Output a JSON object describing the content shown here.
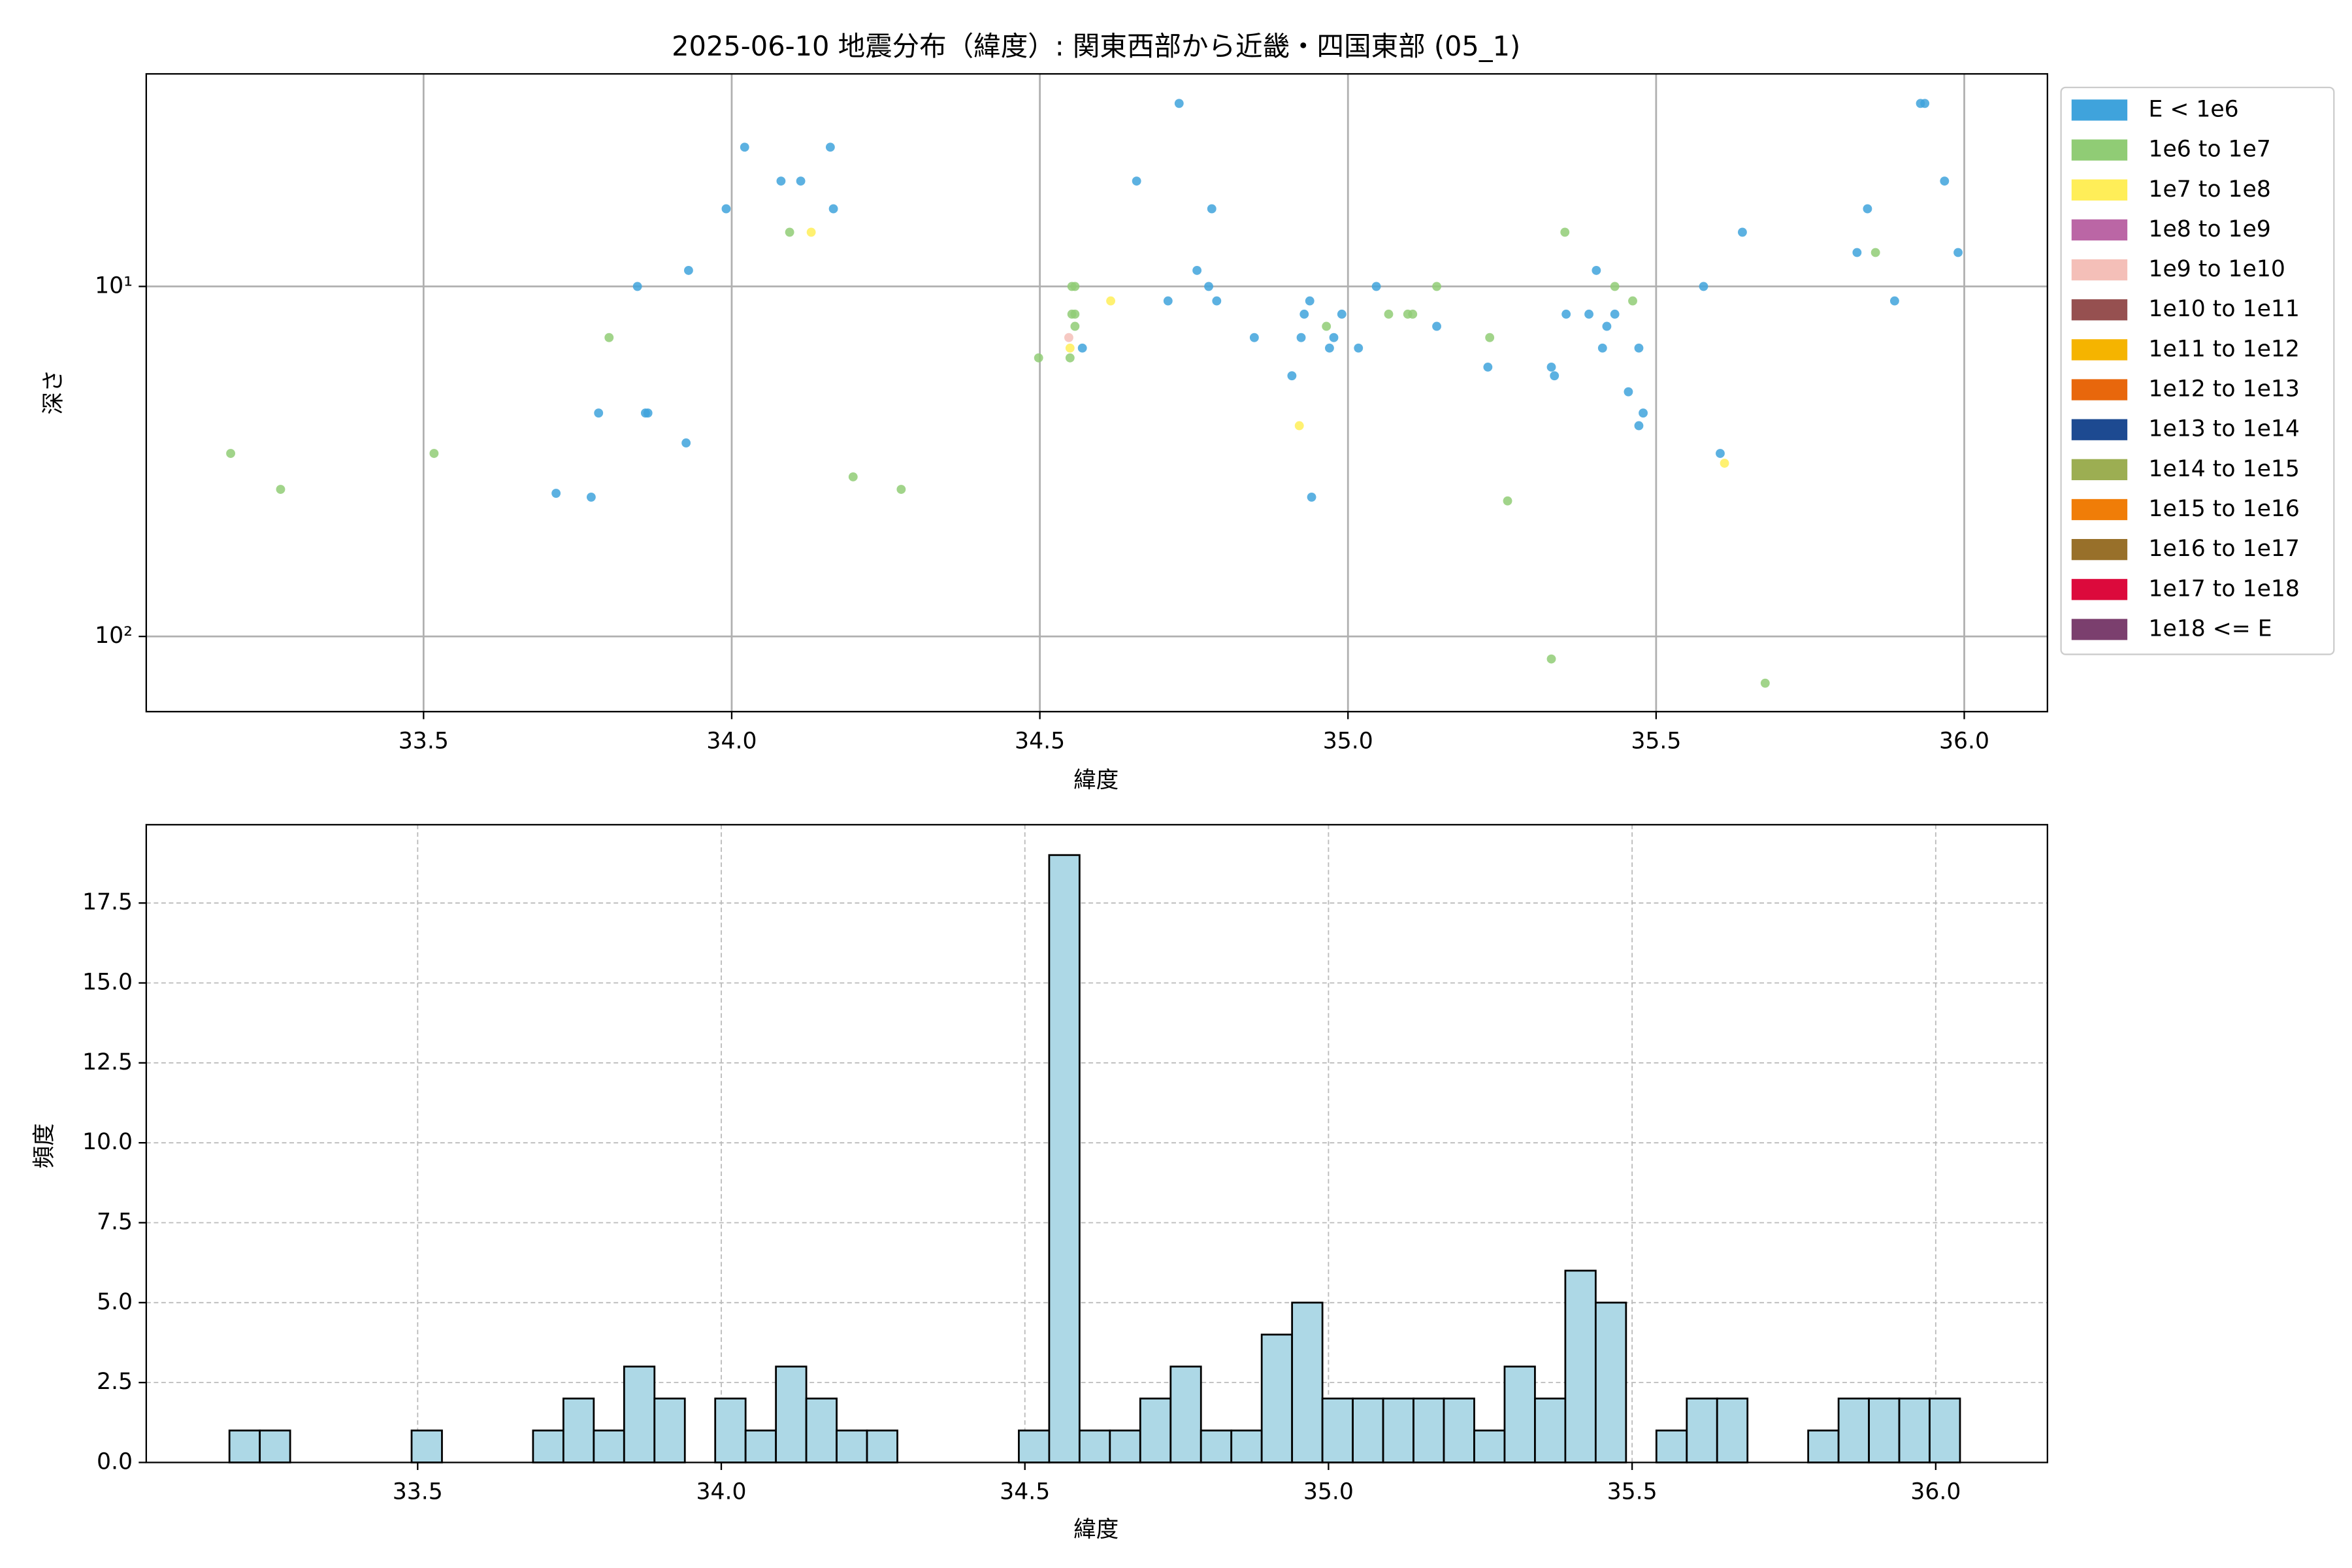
{
  "chart_data": [
    {
      "type": "scatter",
      "title": "2025-06-10 地震分布（緯度）: 関東西部から近畿・四国東部 (05_1)",
      "xlabel": "緯度",
      "ylabel": "深さ",
      "xlim": [
        33.05,
        36.135
      ],
      "ylim": [
        164,
        2.47
      ],
      "y_scale": "log",
      "grid": true,
      "legend": "outside-right",
      "xticks": [
        33.5,
        {
          "value": 34.0,
          "label": "34.0"
        },
        34.5,
        {
          "value": 35.0,
          "label": "35.0"
        },
        35.5,
        {
          "value": 36.0,
          "label": "36.0"
        }
      ],
      "yticks": [
        {
          "value": 10,
          "label": "10¹"
        },
        {
          "value": 100,
          "label": "10²"
        }
      ],
      "series": [
        {
          "name": "E < 1e6",
          "color": "#3fa3dc",
          "x": [
            33.715,
            33.772,
            33.784,
            33.847,
            33.86,
            33.864,
            33.926,
            33.93,
            33.991,
            34.021,
            34.08,
            34.112,
            34.16,
            34.165,
            34.569,
            34.657,
            34.708,
            34.726,
            34.755,
            34.774,
            34.779,
            34.787,
            34.848,
            34.909,
            34.924,
            34.929,
            34.938,
            34.941,
            34.97,
            34.977,
            34.99,
            35.017,
            35.046,
            35.144,
            35.227,
            35.33,
            35.335,
            35.354,
            35.391,
            35.403,
            35.42,
            35.413,
            35.433,
            35.455,
            35.472,
            35.472,
            35.479,
            35.577,
            35.604,
            35.64,
            35.826,
            35.843,
            35.887,
            35.929,
            35.936,
            35.968,
            35.99
          ],
          "values": [
            39,
            40,
            23,
            10,
            23,
            23,
            28,
            9,
            6,
            4,
            5,
            5,
            4,
            6,
            15,
            5,
            11,
            3,
            9,
            10,
            6,
            11,
            14,
            18,
            14,
            12,
            11,
            40,
            15,
            14,
            12,
            15,
            10,
            13,
            17,
            17,
            18,
            12,
            12,
            9,
            13,
            15,
            12,
            20,
            15,
            25,
            23,
            10,
            30,
            7,
            8,
            6,
            11,
            3,
            3,
            5,
            8
          ]
        },
        {
          "name": "1e6 to 1e7",
          "color": "#90cc75",
          "x": [
            33.187,
            33.268,
            33.517,
            33.801,
            34.094,
            34.197,
            34.275,
            34.498,
            34.549,
            34.552,
            34.557,
            34.552,
            34.557,
            34.557,
            34.965,
            35.066,
            35.097,
            35.105,
            35.144,
            35.23,
            35.259,
            35.33,
            35.352,
            35.433,
            35.462,
            35.677,
            35.856
          ],
          "values": [
            30,
            38,
            30,
            14,
            7,
            35,
            38,
            16,
            16,
            10,
            10,
            12,
            12,
            13,
            13,
            12,
            12,
            12,
            10,
            14,
            41,
            116,
            7,
            10,
            11,
            136,
            8
          ]
        },
        {
          "name": "1e7 to 1e8",
          "color": "#ffee58",
          "x": [
            34.129,
            34.549,
            34.615,
            34.921,
            35.611
          ],
          "values": [
            7,
            15,
            11,
            25,
            32
          ]
        },
        {
          "name": "1e8 to 1e9",
          "color": "#bb66a5",
          "x": [],
          "values": []
        },
        {
          "name": "1e9 to 1e10",
          "color": "#f4bfb8",
          "x": [
            34.547
          ],
          "values": [
            14
          ]
        },
        {
          "name": "1e10 to 1e11",
          "color": "#965050",
          "x": [],
          "values": []
        },
        {
          "name": "1e11 to 1e12",
          "color": "#f5b400",
          "x": [],
          "values": []
        },
        {
          "name": "1e12 to 1e13",
          "color": "#e8670c",
          "x": [],
          "values": []
        },
        {
          "name": "1e13 to 1e14",
          "color": "#1d4a91",
          "x": [],
          "values": []
        },
        {
          "name": "1e14 to 1e15",
          "color": "#9cae52",
          "x": [],
          "values": []
        },
        {
          "name": "1e15 to 1e16",
          "color": "#f07d08",
          "x": [],
          "values": []
        },
        {
          "name": "1e16 to 1e17",
          "color": "#98702a",
          "x": [],
          "values": []
        },
        {
          "name": "1e17 to 1e18",
          "color": "#dc0a3c",
          "x": [],
          "values": []
        },
        {
          "name": "1e18 <= E",
          "color": "#7b3f6e",
          "x": [],
          "values": []
        }
      ]
    },
    {
      "type": "histogram",
      "xlabel": "緯度",
      "ylabel": "頻度",
      "color": "#add8e6",
      "grid": true,
      "xlim": [
        33.053,
        36.184
      ],
      "ylim": [
        0,
        19.95
      ],
      "xticks": [
        33.5,
        {
          "value": 34.0,
          "label": "34.0"
        },
        34.5,
        {
          "value": 35.0,
          "label": "35.0"
        },
        35.5,
        {
          "value": 36.0,
          "label": "36.0"
        }
      ],
      "yticks": [
        {
          "value": 0,
          "label": "0.0"
        },
        2.5,
        {
          "value": 5,
          "label": "5.0"
        },
        7.5,
        {
          "value": 10,
          "label": "10.0"
        },
        12.5,
        {
          "value": 15,
          "label": "15.0"
        },
        17.5
      ],
      "bins": [
        33.19,
        33.24,
        33.29,
        33.34,
        33.39,
        33.44,
        33.49,
        33.54,
        33.59,
        33.64,
        33.69,
        33.74,
        33.79,
        33.84,
        33.89,
        33.94,
        33.99,
        34.04,
        34.09,
        34.14,
        34.19,
        34.24,
        34.29,
        34.34,
        34.39,
        34.44,
        34.49,
        34.54,
        34.59,
        34.64,
        34.69,
        34.74,
        34.79,
        34.84,
        34.89,
        34.94,
        34.99,
        35.04,
        35.09,
        35.14,
        35.19,
        35.24,
        35.29,
        35.34,
        35.39,
        35.44,
        35.49,
        35.54,
        35.59,
        35.64,
        35.69,
        35.74,
        35.79,
        35.84,
        35.89,
        35.94,
        35.99,
        36.04
      ],
      "values": [
        1,
        1,
        0,
        0,
        0,
        0,
        1,
        0,
        0,
        0,
        1,
        2,
        1,
        3,
        2,
        0,
        2,
        1,
        3,
        2,
        1,
        1,
        0,
        0,
        0,
        0,
        1,
        19,
        1,
        1,
        2,
        3,
        1,
        1,
        4,
        5,
        2,
        2,
        2,
        2,
        2,
        1,
        3,
        2,
        6,
        5,
        0,
        1,
        2,
        2,
        0,
        0,
        1,
        2,
        2,
        2,
        2
      ]
    }
  ]
}
